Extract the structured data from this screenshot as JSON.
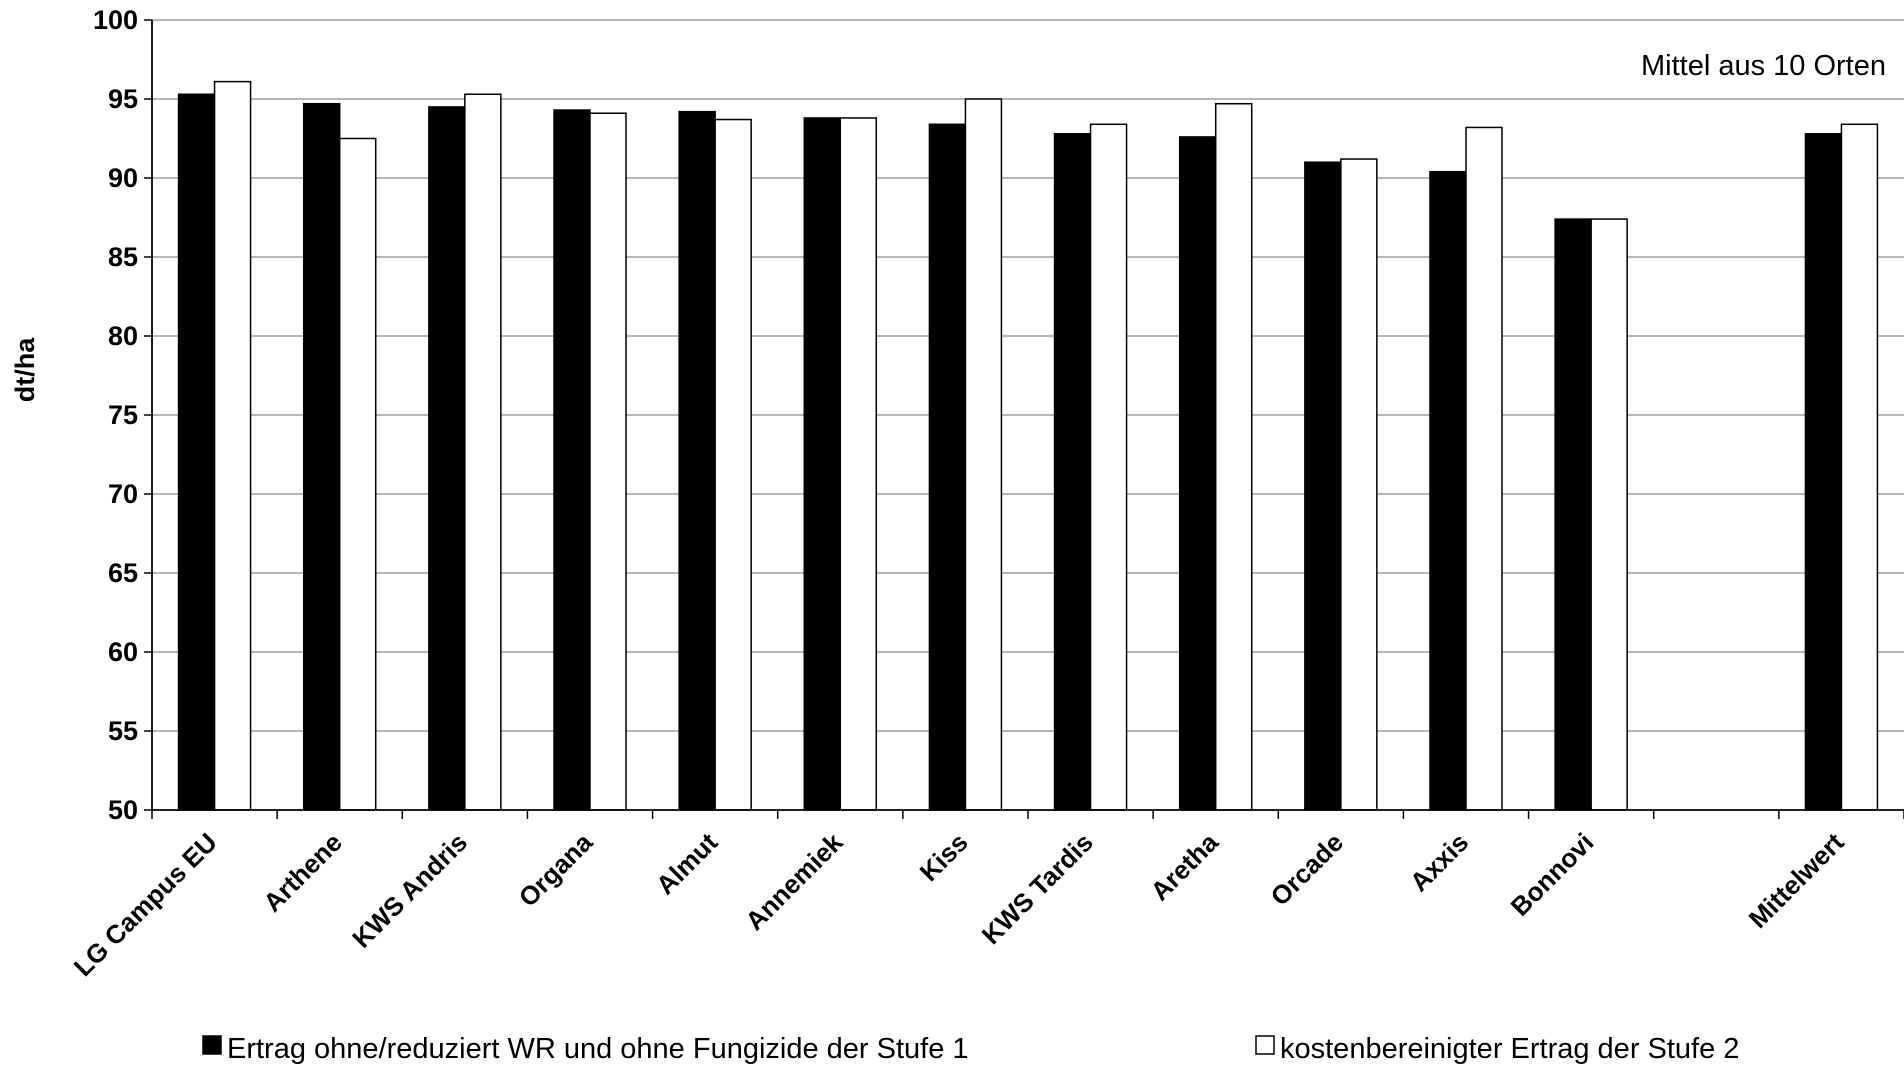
{
  "chart_data": {
    "type": "bar",
    "ylabel": "dt/ha",
    "ylim": [
      50,
      100
    ],
    "yticks": [
      50,
      55,
      60,
      65,
      70,
      75,
      80,
      85,
      90,
      95,
      100
    ],
    "grid": true,
    "annotation": "Mittel aus 10 Orten",
    "categories": [
      "LG Campus EU",
      "Arthene",
      "KWS Andris",
      "Organa",
      "Almut",
      "Annemiek",
      "Kiss",
      "KWS Tardis",
      "Aretha",
      "Orcade",
      "Axxis",
      "Bonnovi",
      "",
      "Mittelwert"
    ],
    "series": [
      {
        "name": "Ertrag ohne/reduziert WR und ohne Fungizide der Stufe 1",
        "color": "#000000",
        "values": [
          95.3,
          94.7,
          94.5,
          94.3,
          94.2,
          93.8,
          93.4,
          92.8,
          92.6,
          91.0,
          90.4,
          87.4,
          null,
          92.8
        ]
      },
      {
        "name": "kostenbereinigter Ertrag der Stufe 2",
        "color": "#ffffff",
        "values": [
          96.1,
          92.5,
          95.3,
          94.1,
          93.7,
          93.8,
          95.0,
          93.4,
          94.7,
          91.2,
          93.2,
          87.4,
          null,
          93.4
        ]
      }
    ],
    "legend_position": "bottom"
  }
}
